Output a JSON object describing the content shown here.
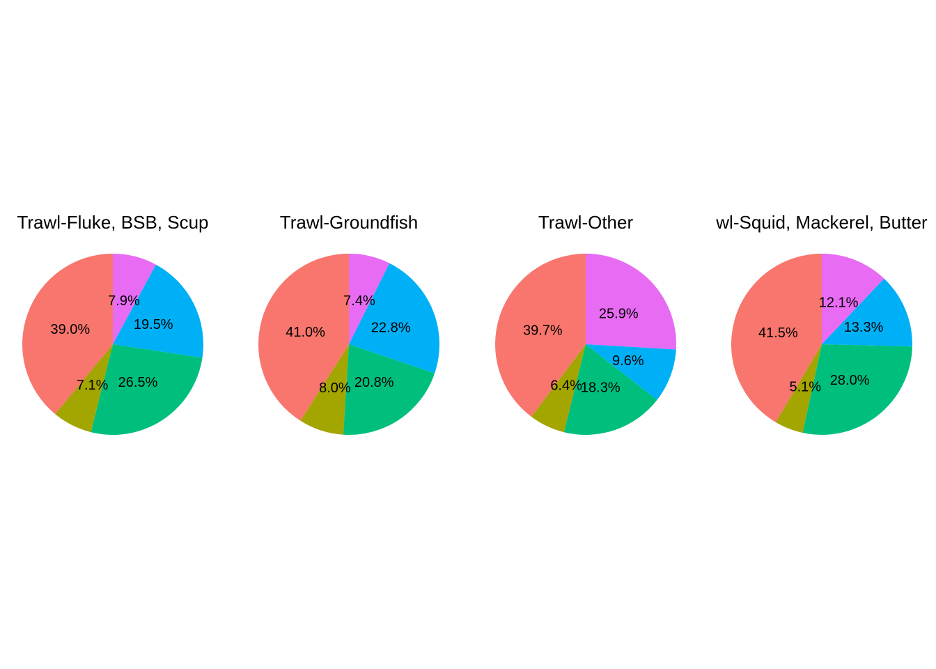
{
  "chart_data": [
    {
      "type": "pie",
      "title": "Trawl-Fluke, BSB, Scup",
      "slices": [
        {
          "value": 7.9,
          "label": "7.9%",
          "color": "#E76BF3"
        },
        {
          "value": 19.5,
          "label": "19.5%",
          "color": "#00B0F6"
        },
        {
          "value": 26.5,
          "label": "26.5%",
          "color": "#00BF7D"
        },
        {
          "value": 7.1,
          "label": "7.1%",
          "color": "#A3A500"
        },
        {
          "value": 39.0,
          "label": "39.0%",
          "color": "#F8766D"
        }
      ]
    },
    {
      "type": "pie",
      "title": "Trawl-Groundfish",
      "slices": [
        {
          "value": 7.4,
          "label": "7.4%",
          "color": "#E76BF3"
        },
        {
          "value": 22.8,
          "label": "22.8%",
          "color": "#00B0F6"
        },
        {
          "value": 20.8,
          "label": "20.8%",
          "color": "#00BF7D"
        },
        {
          "value": 8.0,
          "label": "8.0%",
          "color": "#A3A500"
        },
        {
          "value": 41.0,
          "label": "41.0%",
          "color": "#F8766D"
        }
      ]
    },
    {
      "type": "pie",
      "title": "Trawl-Other",
      "slices": [
        {
          "value": 25.9,
          "label": "25.9%",
          "color": "#E76BF3"
        },
        {
          "value": 9.6,
          "label": "9.6%",
          "color": "#00B0F6"
        },
        {
          "value": 18.3,
          "label": "18.3%",
          "color": "#00BF7D"
        },
        {
          "value": 6.4,
          "label": "6.4%",
          "color": "#A3A500"
        },
        {
          "value": 39.7,
          "label": "39.7%",
          "color": "#F8766D"
        }
      ]
    },
    {
      "type": "pie",
      "title": "wl-Squid, Mackerel, Butter",
      "slices": [
        {
          "value": 12.1,
          "label": "12.1%",
          "color": "#E76BF3"
        },
        {
          "value": 13.3,
          "label": "13.3%",
          "color": "#00B0F6"
        },
        {
          "value": 28.0,
          "label": "28.0%",
          "color": "#00BF7D"
        },
        {
          "value": 5.1,
          "label": "5.1%",
          "color": "#A3A500"
        },
        {
          "value": 41.5,
          "label": "41.5%",
          "color": "#F8766D"
        }
      ]
    }
  ]
}
